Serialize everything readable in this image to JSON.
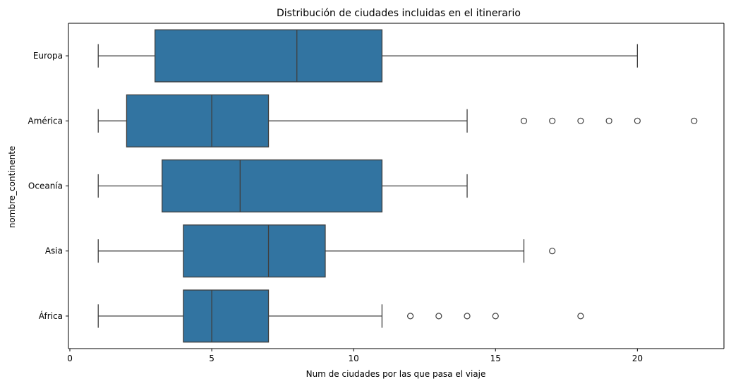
{
  "chart_data": {
    "type": "box",
    "orientation": "horizontal",
    "title": "Distribución de ciudades incluidas en el itinerario",
    "xlabel": "Num de ciudades por las que pasa el viaje",
    "ylabel": "nombre_continente",
    "xlim": [
      -0.05,
      23.05
    ],
    "xticks": [
      0,
      5,
      10,
      15,
      20
    ],
    "grid": false,
    "legend": "none",
    "box_color": "#3274a1",
    "line_color": "#3f3f3f",
    "categories": [
      "Europa",
      "América",
      "Oceanía",
      "Asia",
      "África"
    ],
    "boxes": [
      {
        "category": "Europa",
        "whisker_low": 1,
        "q1": 3,
        "median": 8,
        "q3": 11,
        "whisker_high": 20,
        "outliers": []
      },
      {
        "category": "América",
        "whisker_low": 1,
        "q1": 2,
        "median": 5,
        "q3": 7,
        "whisker_high": 14,
        "outliers": [
          16,
          17,
          18,
          19,
          20,
          22
        ]
      },
      {
        "category": "Oceanía",
        "whisker_low": 1,
        "q1": 3.25,
        "median": 6,
        "q3": 11,
        "whisker_high": 14,
        "outliers": []
      },
      {
        "category": "Asia",
        "whisker_low": 1,
        "q1": 4,
        "median": 7,
        "q3": 9,
        "whisker_high": 16,
        "outliers": [
          17
        ]
      },
      {
        "category": "África",
        "whisker_low": 1,
        "q1": 4,
        "median": 5,
        "q3": 7,
        "whisker_high": 11,
        "outliers": [
          12,
          13,
          14,
          15,
          18
        ]
      }
    ]
  }
}
